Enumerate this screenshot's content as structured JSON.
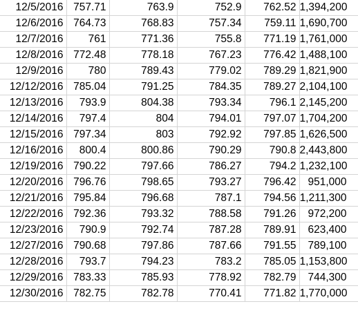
{
  "sheet": {
    "rows": [
      {
        "date": "12/5/2016",
        "open": "757.71",
        "high": "763.9",
        "low": "752.9",
        "close": "762.52",
        "volume": "1,394,200"
      },
      {
        "date": "12/6/2016",
        "open": "764.73",
        "high": "768.83",
        "low": "757.34",
        "close": "759.11",
        "volume": "1,690,700"
      },
      {
        "date": "12/7/2016",
        "open": "761",
        "high": "771.36",
        "low": "755.8",
        "close": "771.19",
        "volume": "1,761,000"
      },
      {
        "date": "12/8/2016",
        "open": "772.48",
        "high": "778.18",
        "low": "767.23",
        "close": "776.42",
        "volume": "1,488,100"
      },
      {
        "date": "12/9/2016",
        "open": "780",
        "high": "789.43",
        "low": "779.02",
        "close": "789.29",
        "volume": "1,821,900"
      },
      {
        "date": "12/12/2016",
        "open": "785.04",
        "high": "791.25",
        "low": "784.35",
        "close": "789.27",
        "volume": "2,104,100"
      },
      {
        "date": "12/13/2016",
        "open": "793.9",
        "high": "804.38",
        "low": "793.34",
        "close": "796.1",
        "volume": "2,145,200"
      },
      {
        "date": "12/14/2016",
        "open": "797.4",
        "high": "804",
        "low": "794.01",
        "close": "797.07",
        "volume": "1,704,200"
      },
      {
        "date": "12/15/2016",
        "open": "797.34",
        "high": "803",
        "low": "792.92",
        "close": "797.85",
        "volume": "1,626,500"
      },
      {
        "date": "12/16/2016",
        "open": "800.4",
        "high": "800.86",
        "low": "790.29",
        "close": "790.8",
        "volume": "2,443,800"
      },
      {
        "date": "12/19/2016",
        "open": "790.22",
        "high": "797.66",
        "low": "786.27",
        "close": "794.2",
        "volume": "1,232,100"
      },
      {
        "date": "12/20/2016",
        "open": "796.76",
        "high": "798.65",
        "low": "793.27",
        "close": "796.42",
        "volume": "951,000"
      },
      {
        "date": "12/21/2016",
        "open": "795.84",
        "high": "796.68",
        "low": "787.1",
        "close": "794.56",
        "volume": "1,211,300"
      },
      {
        "date": "12/22/2016",
        "open": "792.36",
        "high": "793.32",
        "low": "788.58",
        "close": "791.26",
        "volume": "972,200"
      },
      {
        "date": "12/23/2016",
        "open": "790.9",
        "high": "792.74",
        "low": "787.28",
        "close": "789.91",
        "volume": "623,400"
      },
      {
        "date": "12/27/2016",
        "open": "790.68",
        "high": "797.86",
        "low": "787.66",
        "close": "791.55",
        "volume": "789,100"
      },
      {
        "date": "12/28/2016",
        "open": "793.7",
        "high": "794.23",
        "low": "783.2",
        "close": "785.05",
        "volume": "1,153,800"
      },
      {
        "date": "12/29/2016",
        "open": "783.33",
        "high": "785.93",
        "low": "778.92",
        "close": "782.79",
        "volume": "744,300"
      },
      {
        "date": "12/30/2016",
        "open": "782.75",
        "high": "782.78",
        "low": "770.41",
        "close": "771.82",
        "volume": "1,770,000"
      }
    ],
    "gridline_color": "#d4d4d4"
  }
}
